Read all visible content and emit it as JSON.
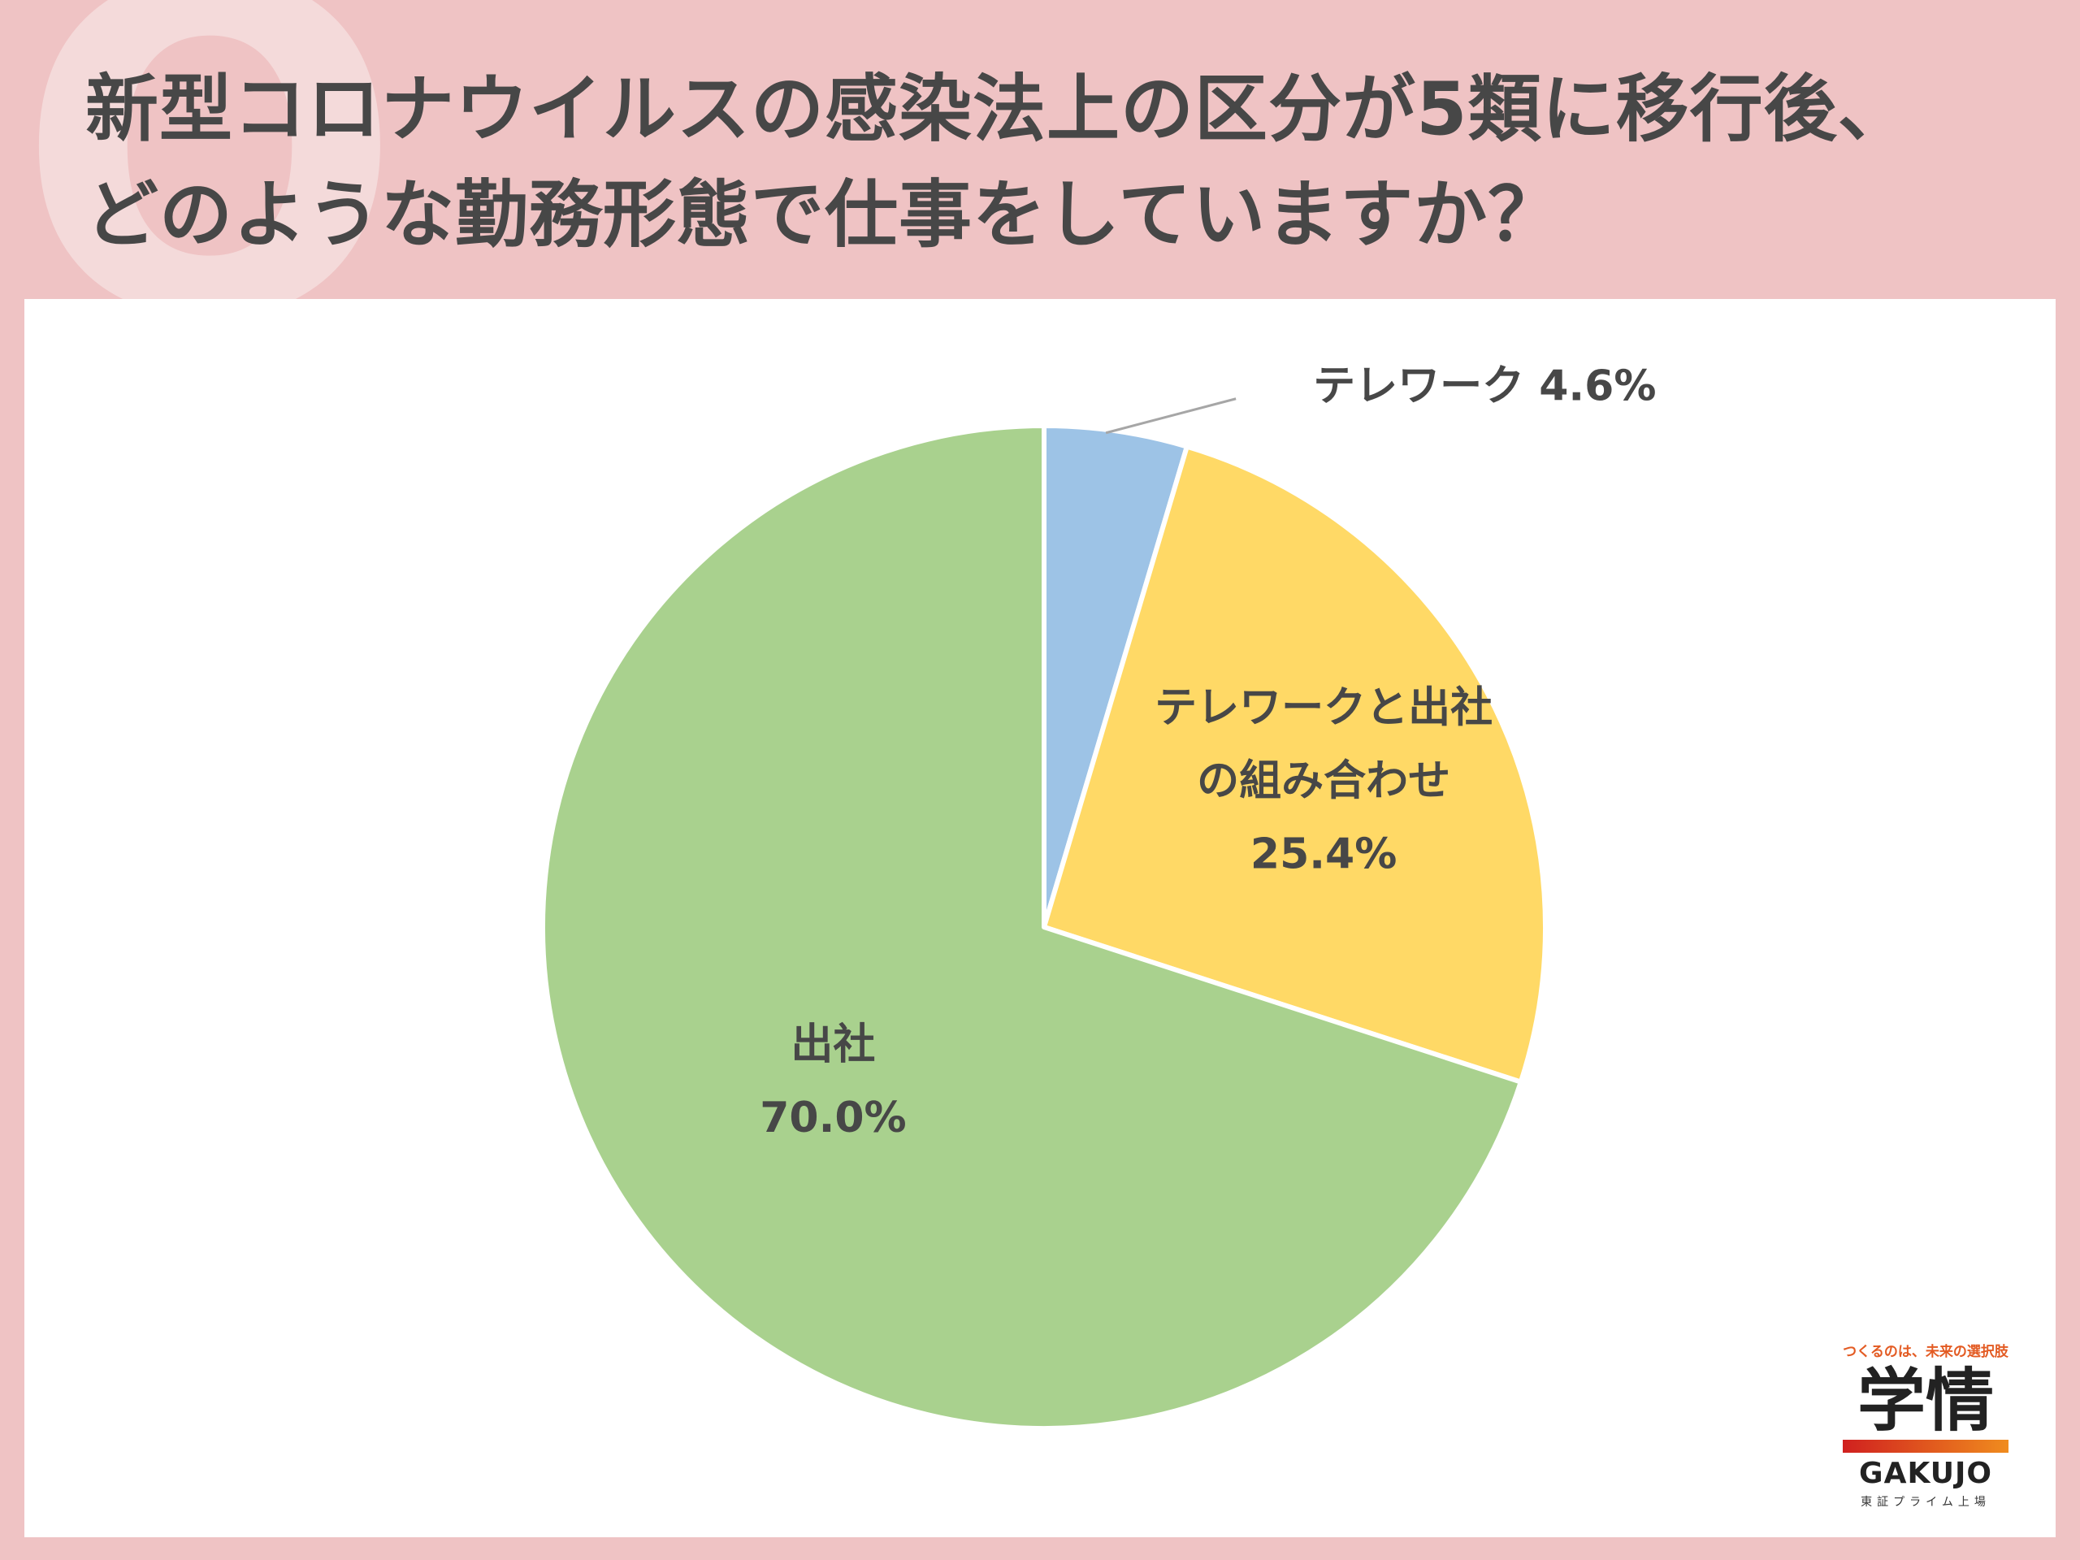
{
  "header": {
    "title_line1": "新型コロナウイルスの感染法上の区分が5類に移行後、",
    "title_line2": "どのような勤務形態で仕事をしていますか？"
  },
  "chart_data": {
    "type": "pie",
    "slices": [
      {
        "label": "テレワーク",
        "value": 4.6,
        "value_label": "4.6%",
        "color": "#9dc3e6"
      },
      {
        "label_lines": [
          "テレワークと出社",
          "の組み合わせ"
        ],
        "value": 25.4,
        "value_label": "25.4%",
        "color": "#ffd966"
      },
      {
        "label": "出社",
        "value": 70.0,
        "value_label": "70.0%",
        "color": "#a9d18e"
      }
    ],
    "start": "12 o'clock",
    "direction": "clockwise",
    "slice_border_color": "#ffffff"
  },
  "logo": {
    "tagline": "つくるのは、未来の選択肢",
    "mark": "学情",
    "name_en": "GAKUJO",
    "sub": "東証プライム上場",
    "bar_colors": [
      "#d0201f",
      "#f08c1e"
    ]
  }
}
